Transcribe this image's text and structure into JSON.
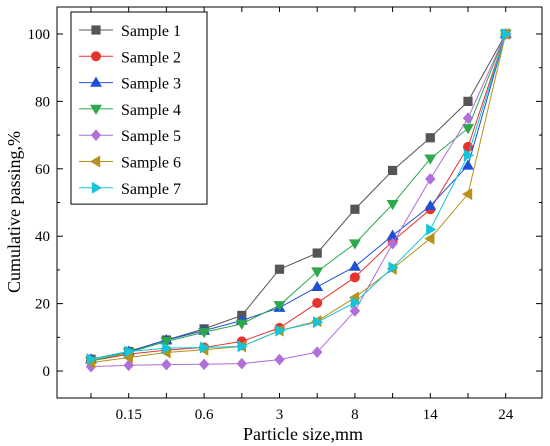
{
  "chart_data": {
    "type": "line",
    "xlabel": "Particle size,mm",
    "ylabel": "Cumulative passing,%",
    "categories": [
      "",
      "0.15",
      "",
      "0.6",
      "",
      "3",
      "",
      "8",
      "",
      "14",
      "",
      "24"
    ],
    "x_tick_labels": [
      "0.15",
      "0.6",
      "3",
      "8",
      "14",
      "24"
    ],
    "y_ticks": [
      0,
      20,
      40,
      60,
      80,
      100
    ],
    "ylim": [
      -8,
      108
    ],
    "grid": false,
    "legend_position": "top-left",
    "series": [
      {
        "name": "Sample 1",
        "color": "#555555",
        "marker": "square",
        "values": [
          3.5,
          5.8,
          9.2,
          12.5,
          16.5,
          30.2,
          35.0,
          48.0,
          59.5,
          69.2,
          80.0,
          100
        ]
      },
      {
        "name": "Sample 2",
        "color": "#e8322e",
        "marker": "circle",
        "values": [
          3.0,
          5.0,
          6.2,
          7.0,
          8.8,
          12.8,
          20.2,
          27.8,
          38.5,
          48.0,
          66.5,
          100
        ]
      },
      {
        "name": "Sample 3",
        "color": "#1f4fd6",
        "marker": "triangle-up",
        "values": [
          3.5,
          5.8,
          9.2,
          12.0,
          15.0,
          18.8,
          25.0,
          31.0,
          40.2,
          49.0,
          61.0,
          100
        ]
      },
      {
        "name": "Sample 4",
        "color": "#2da84a",
        "marker": "triangle-down",
        "values": [
          3.0,
          5.5,
          8.8,
          11.5,
          14.0,
          19.5,
          29.5,
          37.8,
          49.5,
          63.0,
          72.0,
          100
        ]
      },
      {
        "name": "Sample 5",
        "color": "#b06fd9",
        "marker": "diamond",
        "values": [
          1.3,
          1.7,
          1.9,
          2.0,
          2.2,
          3.4,
          5.6,
          17.8,
          37.8,
          57.0,
          75.0,
          100
        ]
      },
      {
        "name": "Sample 6",
        "color": "#b5911a",
        "marker": "triangle-left",
        "values": [
          2.5,
          4.0,
          5.5,
          6.3,
          7.3,
          12.0,
          14.8,
          21.8,
          30.3,
          39.3,
          52.5,
          100
        ]
      },
      {
        "name": "Sample 7",
        "color": "#14c4d8",
        "marker": "triangle-right",
        "values": [
          3.5,
          5.8,
          6.8,
          7.0,
          7.3,
          12.0,
          14.5,
          20.3,
          30.7,
          42.0,
          64.0,
          100
        ]
      }
    ]
  }
}
